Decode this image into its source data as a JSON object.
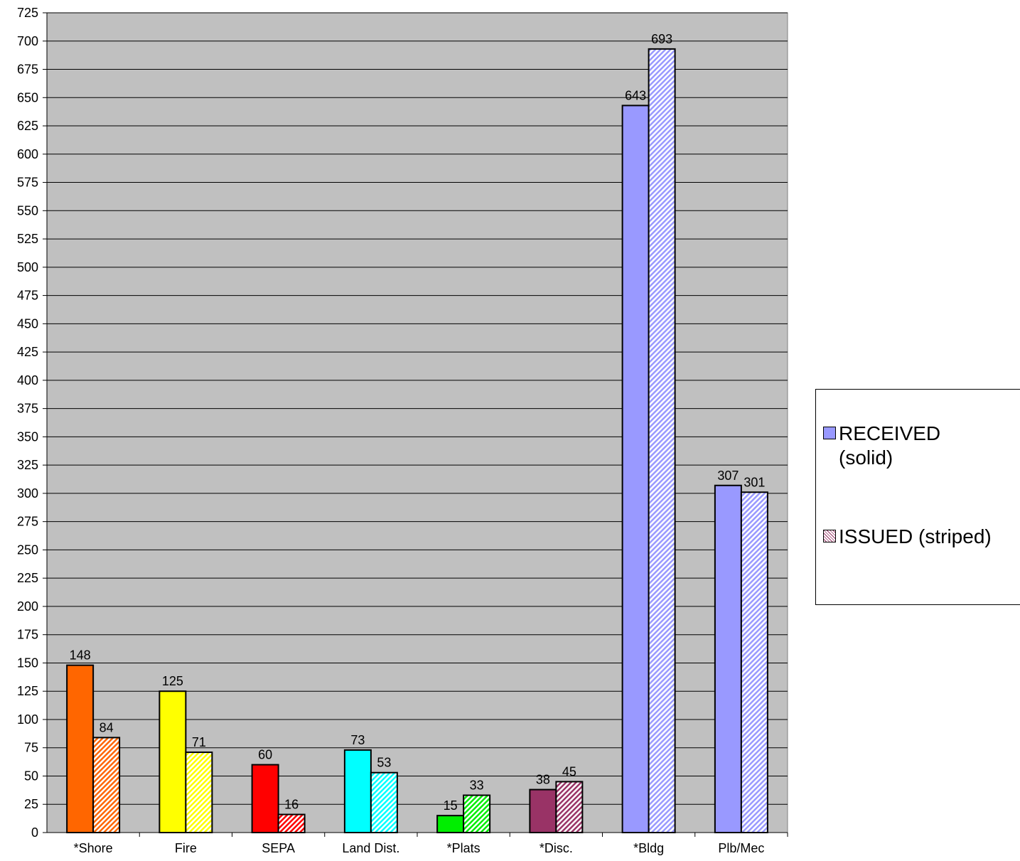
{
  "chart_data": {
    "type": "bar",
    "categories": [
      "*Shore",
      "Fire",
      "SEPA",
      "Land Dist.",
      "*Plats",
      "*Disc.",
      "*Bldg",
      "Plb/Mec"
    ],
    "series": [
      {
        "name": "RECEIVED (solid)",
        "values": [
          148,
          125,
          60,
          73,
          15,
          38,
          643,
          307
        ],
        "pattern": "solid"
      },
      {
        "name": "ISSUED (striped)",
        "values": [
          84,
          71,
          16,
          53,
          33,
          45,
          693,
          301
        ],
        "pattern": "striped"
      }
    ],
    "category_colors": [
      "#ff6600",
      "#ffff00",
      "#ff0000",
      "#00ffff",
      "#00ee00",
      "#993366",
      "#9999ff",
      "#9999ff"
    ],
    "plot_background": "#c0c0c0",
    "ylim": [
      0,
      725
    ],
    "ytick_step": 25,
    "grid": true,
    "legend_position": "right",
    "title": "",
    "xlabel": "",
    "ylabel": ""
  },
  "legend": {
    "received_label_line1": "RECEIVED",
    "received_label_line2": "(solid)",
    "issued_label": "ISSUED (striped)"
  }
}
